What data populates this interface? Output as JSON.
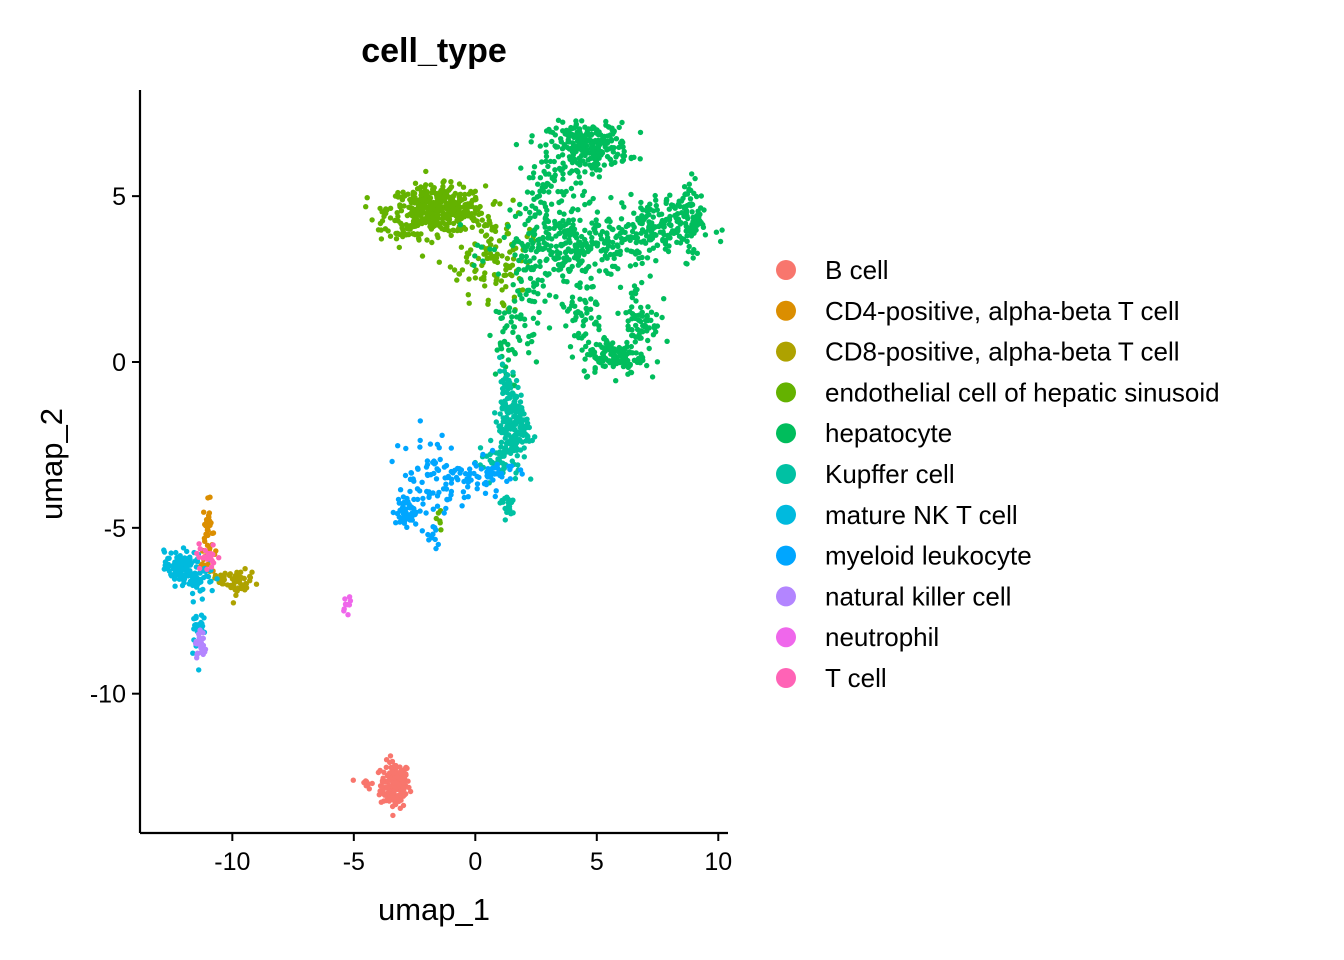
{
  "chart_data": {
    "type": "scatter",
    "title": "cell_type",
    "xlabel": "umap_1",
    "ylabel": "umap_2",
    "xlim": [
      -13.8,
      10.4
    ],
    "ylim": [
      -14.2,
      8.2
    ],
    "xticks": [
      -10,
      -5,
      0,
      5,
      10
    ],
    "xtick_labels": [
      "-10",
      "-5",
      "0",
      "5",
      "10"
    ],
    "yticks": [
      -10,
      -5,
      0,
      5
    ],
    "ytick_labels": [
      "-10",
      "-5",
      "0",
      "5"
    ],
    "grid": false,
    "legend_position": "right",
    "series": [
      {
        "name": "B cell",
        "color": "#F8766D",
        "clusters": [
          {
            "cx": -3.3,
            "cy": -12.75,
            "sx": 0.3,
            "sy": 0.35,
            "n": 170
          },
          {
            "cx": -4.5,
            "cy": -12.7,
            "sx": 0.15,
            "sy": 0.08,
            "n": 10
          }
        ]
      },
      {
        "name": "CD4-positive, alpha-beta T cell",
        "color": "#DB8E00",
        "clusters": [
          {
            "cx": -11.0,
            "cy": -5.0,
            "sx": 0.1,
            "sy": 0.4,
            "n": 30
          },
          {
            "cx": -11.2,
            "cy": -5.9,
            "sx": 0.25,
            "sy": 0.25,
            "n": 12
          }
        ]
      },
      {
        "name": "CD8-positive, alpha-beta T cell",
        "color": "#AEA200",
        "clusters": [
          {
            "cx": -9.7,
            "cy": -6.65,
            "sx": 0.25,
            "sy": 0.18,
            "n": 45
          },
          {
            "cx": -10.4,
            "cy": -6.5,
            "sx": 0.3,
            "sy": 0.15,
            "n": 15
          }
        ]
      },
      {
        "name": "endothelial cell of hepatic sinusoid",
        "color": "#64B200",
        "clusters": [
          {
            "cx": -1.6,
            "cy": 4.6,
            "sx": 1.0,
            "sy": 0.35,
            "n": 420
          },
          {
            "cx": 0.5,
            "cy": 3.6,
            "sx": 0.8,
            "sy": 0.5,
            "n": 70
          },
          {
            "cx": 0.6,
            "cy": 2.5,
            "sx": 0.7,
            "sy": 0.5,
            "n": 50
          },
          {
            "cx": -2.9,
            "cy": 3.9,
            "sx": 0.5,
            "sy": 0.2,
            "n": 25
          },
          {
            "cx": -1.5,
            "cy": -4.8,
            "sx": 0.15,
            "sy": 0.3,
            "n": 6
          }
        ]
      },
      {
        "name": "hepatocyte",
        "color": "#00BD5C",
        "clusters": [
          {
            "cx": 4.7,
            "cy": 6.5,
            "sx": 0.8,
            "sy": 0.35,
            "n": 260
          },
          {
            "cx": 3.1,
            "cy": 4.8,
            "sx": 0.7,
            "sy": 0.9,
            "n": 100
          },
          {
            "cx": 4.2,
            "cy": 3.5,
            "sx": 1.6,
            "sy": 0.5,
            "n": 260
          },
          {
            "cx": 7.3,
            "cy": 4.1,
            "sx": 1.0,
            "sy": 0.45,
            "n": 150
          },
          {
            "cx": 8.8,
            "cy": 4.4,
            "sx": 0.25,
            "sy": 0.6,
            "n": 70
          },
          {
            "cx": 5.6,
            "cy": 0.2,
            "sx": 0.6,
            "sy": 0.3,
            "n": 110
          },
          {
            "cx": 6.8,
            "cy": 1.2,
            "sx": 0.4,
            "sy": 0.7,
            "n": 80
          },
          {
            "cx": 4.3,
            "cy": 1.5,
            "sx": 0.5,
            "sy": 0.5,
            "n": 50
          },
          {
            "cx": 2.0,
            "cy": 2.0,
            "sx": 0.5,
            "sy": 0.9,
            "n": 70
          },
          {
            "cx": 1.3,
            "cy": 0.5,
            "sx": 0.25,
            "sy": 0.8,
            "n": 30
          }
        ]
      },
      {
        "name": "Kupffer cell",
        "color": "#00C1A3",
        "clusters": [
          {
            "cx": 1.6,
            "cy": -2.0,
            "sx": 0.3,
            "sy": 0.6,
            "n": 150
          },
          {
            "cx": 1.2,
            "cy": -1.0,
            "sx": 0.2,
            "sy": 0.6,
            "n": 40
          },
          {
            "cx": 1.3,
            "cy": -4.3,
            "sx": 0.2,
            "sy": 0.2,
            "n": 20
          },
          {
            "cx": 0.9,
            "cy": -3.0,
            "sx": 0.4,
            "sy": 0.3,
            "n": 40
          }
        ]
      },
      {
        "name": "mature NK T cell",
        "color": "#00BADE",
        "clusters": [
          {
            "cx": -12.2,
            "cy": -6.2,
            "sx": 0.3,
            "sy": 0.25,
            "n": 80
          },
          {
            "cx": -11.5,
            "cy": -6.4,
            "sx": 0.4,
            "sy": 0.3,
            "n": 60
          },
          {
            "cx": -11.4,
            "cy": -7.9,
            "sx": 0.15,
            "sy": 0.45,
            "n": 30
          }
        ]
      },
      {
        "name": "myeloid leukocyte",
        "color": "#00A6FF",
        "clusters": [
          {
            "cx": -2.8,
            "cy": -4.5,
            "sx": 0.3,
            "sy": 0.2,
            "n": 45
          },
          {
            "cx": -2.0,
            "cy": -3.5,
            "sx": 0.6,
            "sy": 0.7,
            "n": 70
          },
          {
            "cx": -0.3,
            "cy": -3.5,
            "sx": 0.7,
            "sy": 0.3,
            "n": 50
          },
          {
            "cx": -1.7,
            "cy": -5.2,
            "sx": 0.2,
            "sy": 0.2,
            "n": 10
          },
          {
            "cx": 0.9,
            "cy": -3.2,
            "sx": 0.4,
            "sy": 0.3,
            "n": 20
          }
        ]
      },
      {
        "name": "natural killer cell",
        "color": "#B385FF",
        "clusters": [
          {
            "cx": -11.3,
            "cy": -8.6,
            "sx": 0.12,
            "sy": 0.25,
            "n": 25
          }
        ]
      },
      {
        "name": "neutrophil",
        "color": "#EF67EB",
        "clusters": [
          {
            "cx": -5.3,
            "cy": -7.15,
            "sx": 0.1,
            "sy": 0.15,
            "n": 10
          }
        ]
      },
      {
        "name": "T cell",
        "color": "#FF63B6",
        "clusters": [
          {
            "cx": -11.0,
            "cy": -5.9,
            "sx": 0.25,
            "sy": 0.2,
            "n": 22
          }
        ]
      }
    ]
  }
}
